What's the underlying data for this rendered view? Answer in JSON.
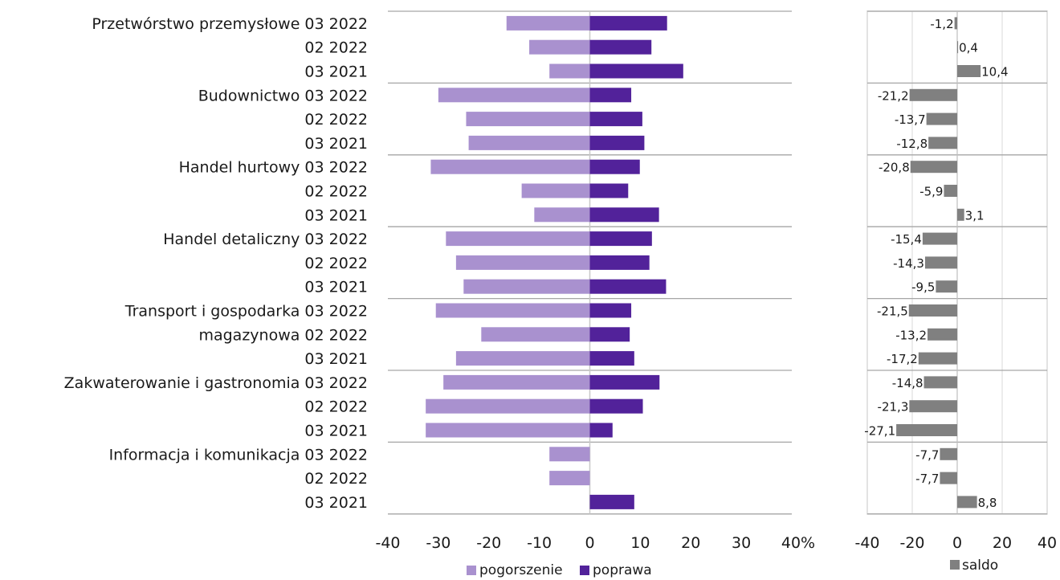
{
  "colors": {
    "pogorszenie": "#a991cf",
    "poprawa": "#52229a",
    "saldo": "#808080",
    "grid": "#a6a6a6"
  },
  "chart_data": [
    {
      "type": "bar",
      "orientation": "horizontal",
      "stacked": "diverging",
      "xlim": [
        -40,
        40
      ],
      "x_ticks": [
        "-40",
        "-30",
        "-20",
        "-10",
        "0",
        "10",
        "20",
        "30",
        "40%"
      ],
      "legend_position": "bottom",
      "groups": [
        {
          "label": "Przetwórstwo przemysłowe",
          "rows": [
            "03 2022",
            "02 2022",
            "03 2021"
          ]
        },
        {
          "label": "Budownictwo",
          "rows": [
            "03 2022",
            "02 2022",
            "03 2021"
          ]
        },
        {
          "label": "Handel hurtowy",
          "rows": [
            "03 2022",
            "02 2022",
            "03 2021"
          ]
        },
        {
          "label": "Handel detaliczny",
          "rows": [
            "03 2022",
            "02 2022",
            "03 2021"
          ]
        },
        {
          "label": "Transport i gospodarka",
          "label2": "magazynowa",
          "rows": [
            "03 2022",
            "02 2022",
            "03 2021"
          ]
        },
        {
          "label": "Zakwaterowanie i gastronomia",
          "rows": [
            "03 2022",
            "02 2022",
            "03 2021"
          ]
        },
        {
          "label": "Informacja i komunikacja",
          "rows": [
            "03 2022",
            "02 2022",
            "03 2021"
          ]
        }
      ],
      "series": [
        {
          "name": "pogorszenie",
          "values": [
            -16.5,
            -12,
            -8,
            -30,
            -24.5,
            -24,
            -31.5,
            -13.5,
            -11,
            -28.5,
            -26.5,
            -25,
            -30.5,
            -21.5,
            -26.5,
            -29,
            -32.5,
            -32.5,
            -8,
            -8,
            0
          ]
        },
        {
          "name": "poprawa",
          "values": [
            15.3,
            12.2,
            18.5,
            8.2,
            10.4,
            10.8,
            9.9,
            7.6,
            13.7,
            12.3,
            11.8,
            15.1,
            8.2,
            7.9,
            8.8,
            13.8,
            10.5,
            4.5,
            0,
            0,
            8.8
          ]
        }
      ]
    },
    {
      "type": "bar",
      "orientation": "horizontal",
      "xlim": [
        -40,
        40
      ],
      "x_ticks": [
        "-40",
        "-20",
        "0",
        "20",
        "40"
      ],
      "legend_position": "bottom",
      "series": [
        {
          "name": "saldo",
          "values": [
            -1.2,
            0.4,
            10.4,
            -21.2,
            -13.7,
            -12.8,
            -20.8,
            -5.9,
            3.1,
            -15.4,
            -14.3,
            -9.5,
            -21.5,
            -13.2,
            -17.2,
            -14.8,
            -21.3,
            -27.1,
            -7.7,
            -7.7,
            8.8
          ],
          "labels": [
            "-1,2",
            "0,4",
            "10,4",
            "-21,2",
            "-13,7",
            "-12,8",
            "-20,8",
            "-5,9",
            "3,1",
            "-15,4",
            "-14,3",
            "-9,5",
            "-21,5",
            "-13,2",
            "-17,2",
            "-14,8",
            "-21,3",
            "-27,1",
            "-7,7",
            "-7,7",
            "8,8"
          ]
        }
      ]
    }
  ]
}
